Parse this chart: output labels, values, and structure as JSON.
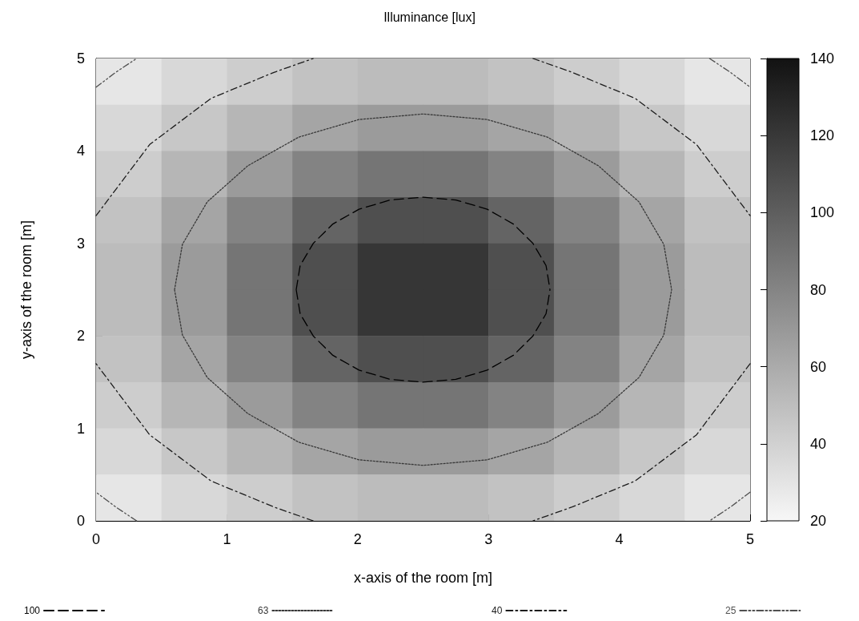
{
  "chart_data": {
    "type": "heatmap",
    "title": "Illuminance [lux]",
    "xlabel": "x-axis of the room [m]",
    "ylabel": "y-axis of the room [m]",
    "x": [
      0.25,
      0.75,
      1.25,
      1.75,
      2.25,
      2.75,
      3.25,
      3.75,
      4.25,
      4.75
    ],
    "y": [
      4.75,
      4.25,
      3.75,
      3.25,
      2.75,
      2.25,
      1.75,
      1.25,
      0.75,
      0.25
    ],
    "cells": [
      [
        29,
        36,
        42,
        48,
        51,
        51,
        48,
        42,
        36,
        29
      ],
      [
        36,
        45,
        54,
        63,
        68,
        68,
        63,
        54,
        45,
        36
      ],
      [
        42,
        54,
        68,
        81,
        88,
        88,
        81,
        68,
        54,
        42
      ],
      [
        48,
        63,
        81,
        97,
        108,
        108,
        97,
        81,
        63,
        48
      ],
      [
        51,
        68,
        88,
        108,
        121,
        121,
        108,
        88,
        68,
        51
      ],
      [
        51,
        68,
        88,
        108,
        121,
        121,
        108,
        88,
        68,
        51
      ],
      [
        48,
        63,
        81,
        97,
        108,
        108,
        97,
        81,
        63,
        48
      ],
      [
        42,
        54,
        68,
        81,
        88,
        88,
        81,
        68,
        54,
        42
      ],
      [
        36,
        45,
        54,
        63,
        68,
        68,
        63,
        54,
        45,
        36
      ],
      [
        29,
        36,
        42,
        48,
        51,
        51,
        48,
        42,
        36,
        29
      ]
    ],
    "clim": [
      20,
      140
    ],
    "cticks": [
      20,
      40,
      60,
      80,
      100,
      120,
      140
    ],
    "xlim": [
      0,
      5
    ],
    "xticks": [
      0,
      1,
      2,
      3,
      4,
      5
    ],
    "ylim": [
      0,
      5
    ],
    "yticks": [
      0,
      1,
      2,
      3,
      4,
      5
    ],
    "series": [
      {
        "name": "100",
        "type": "line",
        "color": "#000000",
        "line_style": "dashed",
        "x": [
          1.53,
          1.56,
          1.66,
          1.81,
          2.01,
          2.25,
          2.5,
          2.75,
          2.99,
          3.19,
          3.34,
          3.44,
          3.47,
          null,
          1.53,
          1.56,
          1.66,
          1.81,
          2.01,
          2.25,
          2.5,
          2.75,
          2.99,
          3.19,
          3.34,
          3.44,
          3.47
        ],
        "values": [
          2.5,
          2.76,
          3.0,
          3.21,
          3.37,
          3.47,
          3.5,
          3.47,
          3.37,
          3.21,
          3.0,
          2.76,
          2.5,
          null,
          2.5,
          2.24,
          2.0,
          1.79,
          1.63,
          1.53,
          1.5,
          1.53,
          1.63,
          1.79,
          2.0,
          2.24,
          2.5
        ]
      },
      {
        "name": "63",
        "type": "line",
        "color": "#383838",
        "line_style": "dotted",
        "x": [
          0.6,
          0.66,
          0.85,
          1.16,
          1.55,
          2.01,
          2.5,
          2.99,
          3.45,
          3.84,
          4.15,
          4.34,
          4.4,
          null,
          0.6,
          0.66,
          0.85,
          1.16,
          1.55,
          2.01,
          2.5,
          2.99,
          3.45,
          3.84,
          4.15,
          4.34,
          4.4
        ],
        "values": [
          2.5,
          2.99,
          3.45,
          3.84,
          4.15,
          4.34,
          4.4,
          4.34,
          4.15,
          3.84,
          3.45,
          2.99,
          2.5,
          null,
          2.5,
          2.01,
          1.55,
          1.16,
          0.85,
          0.66,
          0.6,
          0.66,
          0.85,
          1.16,
          1.55,
          2.01,
          2.5
        ]
      },
      {
        "name": "40",
        "type": "line",
        "color": "#1c1c1c",
        "line_style": "dashdot",
        "x": [
          0,
          0.41,
          0.88,
          1.36,
          1.66,
          null,
          3.34,
          3.64,
          4.12,
          4.59,
          5,
          null,
          5,
          4.59,
          4.12,
          3.64,
          3.34,
          null,
          1.66,
          1.36,
          0.88,
          0.41,
          0
        ],
        "values": [
          3.3,
          4.07,
          4.57,
          4.85,
          5,
          null,
          5,
          4.85,
          4.57,
          4.07,
          3.3,
          null,
          1.7,
          0.93,
          0.43,
          0.15,
          0,
          null,
          0,
          0.15,
          0.43,
          0.93,
          1.7
        ]
      },
      {
        "name": "25",
        "type": "line",
        "color": "#505050",
        "line_style": "dashdotdot",
        "x": [
          0,
          0.15,
          0.31,
          null,
          4.69,
          4.85,
          5,
          null,
          5,
          4.85,
          4.69,
          null,
          0.31,
          0.15,
          0
        ],
        "values": [
          4.69,
          4.85,
          5,
          null,
          5,
          4.85,
          4.69,
          null,
          0.31,
          0.15,
          0,
          null,
          0,
          0.15,
          0.31
        ]
      }
    ],
    "legend": "bottom"
  }
}
